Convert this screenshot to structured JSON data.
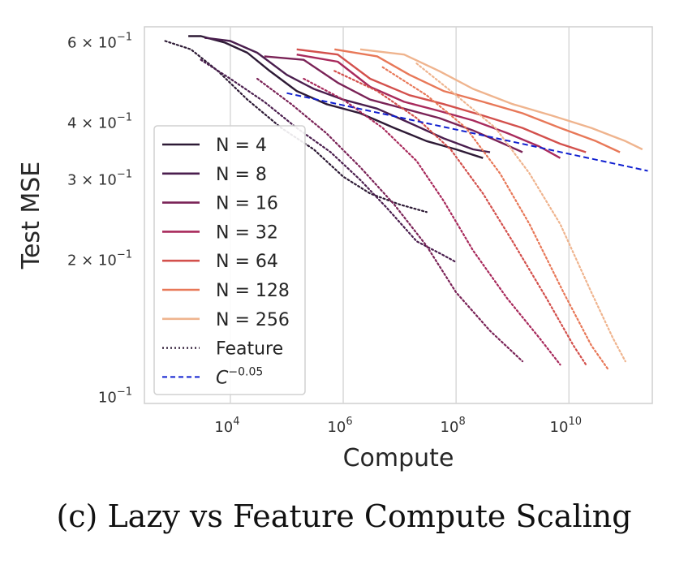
{
  "caption": "(c) Lazy vs Feature Compute Scaling",
  "chart_data": {
    "type": "line",
    "xlabel": "Compute",
    "ylabel": "Test MSE",
    "xscale": "log",
    "yscale": "log",
    "xlim": [
      300,
      300000000000.0
    ],
    "ylim": [
      0.097,
      0.65
    ],
    "grid": true,
    "legend_position": "center-left",
    "x_ticks": [
      {
        "value": 10000,
        "base": "10",
        "exp": "4"
      },
      {
        "value": 1000000,
        "base": "10",
        "exp": "6"
      },
      {
        "value": 100000000,
        "base": "10",
        "exp": "8"
      },
      {
        "value": 10000000000,
        "base": "10",
        "exp": "10"
      }
    ],
    "y_ticks": [
      {
        "value": 0.6,
        "mantissa": "6 × 10",
        "exp": "−1"
      },
      {
        "value": 0.4,
        "mantissa": "4 × 10",
        "exp": "−1"
      },
      {
        "value": 0.3,
        "mantissa": "3 × 10",
        "exp": "−1"
      },
      {
        "value": 0.2,
        "mantissa": "2 × 10",
        "exp": "−1"
      },
      {
        "value": 0.1,
        "mantissa": "10",
        "exp": "−1"
      }
    ],
    "series": [
      {
        "name": "N = 4",
        "color": "#2d1a35",
        "lazy": [
          [
            1800,
            0.62
          ],
          [
            3000,
            0.62
          ],
          [
            8000,
            0.6
          ],
          [
            20000,
            0.57
          ],
          [
            50000,
            0.52
          ],
          [
            150000,
            0.47
          ],
          [
            500000,
            0.44
          ],
          [
            2000000,
            0.42
          ],
          [
            8000000,
            0.39
          ],
          [
            30000000,
            0.365
          ],
          [
            100000000,
            0.35
          ],
          [
            300000000,
            0.335
          ]
        ],
        "feature": [
          [
            700,
            0.605
          ],
          [
            2000,
            0.58
          ],
          [
            6000,
            0.52
          ],
          [
            20000,
            0.45
          ],
          [
            80000,
            0.39
          ],
          [
            300000,
            0.35
          ],
          [
            1000000,
            0.305
          ],
          [
            3000000,
            0.28
          ],
          [
            10000000,
            0.265
          ],
          [
            30000000,
            0.255
          ]
        ]
      },
      {
        "name": "N = 8",
        "color": "#4a1e4e",
        "lazy": [
          [
            3500,
            0.615
          ],
          [
            10000,
            0.605
          ],
          [
            30000,
            0.57
          ],
          [
            100000,
            0.51
          ],
          [
            300000,
            0.475
          ],
          [
            1000000,
            0.45
          ],
          [
            4000000,
            0.43
          ],
          [
            15000000,
            0.4
          ],
          [
            60000000,
            0.37
          ],
          [
            200000000,
            0.35
          ],
          [
            400000000,
            0.345
          ]
        ],
        "feature": [
          [
            3000,
            0.55
          ],
          [
            10000,
            0.5
          ],
          [
            40000,
            0.445
          ],
          [
            150000,
            0.39
          ],
          [
            600000,
            0.345
          ],
          [
            2000000,
            0.3
          ],
          [
            6000000,
            0.26
          ],
          [
            20000000,
            0.22
          ],
          [
            60000000,
            0.205
          ],
          [
            100000000,
            0.198
          ]
        ]
      },
      {
        "name": "N = 16",
        "color": "#7a2357",
        "lazy": [
          [
            40000,
            0.56
          ],
          [
            200000,
            0.55
          ],
          [
            800000,
            0.49
          ],
          [
            3000000,
            0.45
          ],
          [
            12000000,
            0.43
          ],
          [
            50000000,
            0.41
          ],
          [
            200000000,
            0.385
          ],
          [
            700000000,
            0.36
          ],
          [
            1500000000,
            0.345
          ]
        ],
        "feature": [
          [
            30000,
            0.5
          ],
          [
            120000,
            0.44
          ],
          [
            500000,
            0.38
          ],
          [
            2000000,
            0.32
          ],
          [
            8000000,
            0.265
          ],
          [
            30000000,
            0.215
          ],
          [
            100000000,
            0.17
          ],
          [
            400000000,
            0.14
          ],
          [
            1500000000,
            0.12
          ]
        ]
      },
      {
        "name": "N = 32",
        "color": "#a82a5c",
        "lazy": [
          [
            150000,
            0.565
          ],
          [
            800000,
            0.545
          ],
          [
            3000000,
            0.48
          ],
          [
            12000000,
            0.445
          ],
          [
            50000000,
            0.425
          ],
          [
            200000000,
            0.405
          ],
          [
            800000000,
            0.38
          ],
          [
            3000000000,
            0.355
          ],
          [
            7000000000,
            0.335
          ]
        ],
        "feature": [
          [
            200000,
            0.5
          ],
          [
            1000000,
            0.45
          ],
          [
            5000000,
            0.39
          ],
          [
            20000000,
            0.33
          ],
          [
            60000000,
            0.27
          ],
          [
            200000000,
            0.21
          ],
          [
            800000000,
            0.165
          ],
          [
            3000000000,
            0.135
          ],
          [
            7000000000,
            0.118
          ]
        ]
      },
      {
        "name": "N = 64",
        "color": "#d3504c",
        "lazy": [
          [
            150000,
            0.58
          ],
          [
            800000,
            0.565
          ],
          [
            3000000,
            0.5
          ],
          [
            15000000,
            0.46
          ],
          [
            60000000,
            0.44
          ],
          [
            300000000,
            0.415
          ],
          [
            1500000000,
            0.39
          ],
          [
            7000000000,
            0.36
          ],
          [
            20000000000,
            0.345
          ]
        ],
        "feature": [
          [
            700000,
            0.52
          ],
          [
            4000000,
            0.47
          ],
          [
            20000000,
            0.41
          ],
          [
            80000000,
            0.35
          ],
          [
            300000000,
            0.28
          ],
          [
            1000000000,
            0.22
          ],
          [
            4000000000,
            0.165
          ],
          [
            12000000000,
            0.13
          ],
          [
            20000000000,
            0.118
          ]
        ]
      },
      {
        "name": "N = 128",
        "color": "#e87858",
        "lazy": [
          [
            700000,
            0.58
          ],
          [
            4000000,
            0.56
          ],
          [
            15000000,
            0.51
          ],
          [
            60000000,
            0.47
          ],
          [
            300000000,
            0.445
          ],
          [
            1500000000,
            0.42
          ],
          [
            7000000000,
            0.39
          ],
          [
            30000000000,
            0.365
          ],
          [
            80000000000,
            0.345
          ]
        ],
        "feature": [
          [
            5000000,
            0.53
          ],
          [
            30000000,
            0.46
          ],
          [
            150000000,
            0.39
          ],
          [
            600000000,
            0.31
          ],
          [
            2000000000,
            0.24
          ],
          [
            8000000000,
            0.17
          ],
          [
            25000000000,
            0.13
          ],
          [
            50000000000,
            0.115
          ]
        ]
      },
      {
        "name": "N = 256",
        "color": "#efb48e",
        "lazy": [
          [
            2000000,
            0.58
          ],
          [
            12000000,
            0.565
          ],
          [
            50000000,
            0.52
          ],
          [
            200000000,
            0.475
          ],
          [
            1000000000,
            0.44
          ],
          [
            5000000000,
            0.415
          ],
          [
            25000000000,
            0.39
          ],
          [
            100000000000,
            0.365
          ],
          [
            200000000000,
            0.35
          ]
        ],
        "feature": [
          [
            20000000,
            0.54
          ],
          [
            100000000,
            0.46
          ],
          [
            500000000,
            0.39
          ],
          [
            2000000000,
            0.31
          ],
          [
            7000000000,
            0.24
          ],
          [
            25000000000,
            0.17
          ],
          [
            60000000000,
            0.135
          ],
          [
            100000000000,
            0.12
          ]
        ]
      }
    ],
    "legend_extra": [
      {
        "name": "Feature",
        "color": "#2d1a35",
        "style": "dotted"
      },
      {
        "name": "C",
        "sup": "−0.05",
        "color": "#1020d0",
        "style": "dashed"
      }
    ],
    "power_law": {
      "exponent": -0.05,
      "x": [
        100000,
        250000000000
      ],
      "y": [
        0.465,
        0.314
      ]
    }
  }
}
